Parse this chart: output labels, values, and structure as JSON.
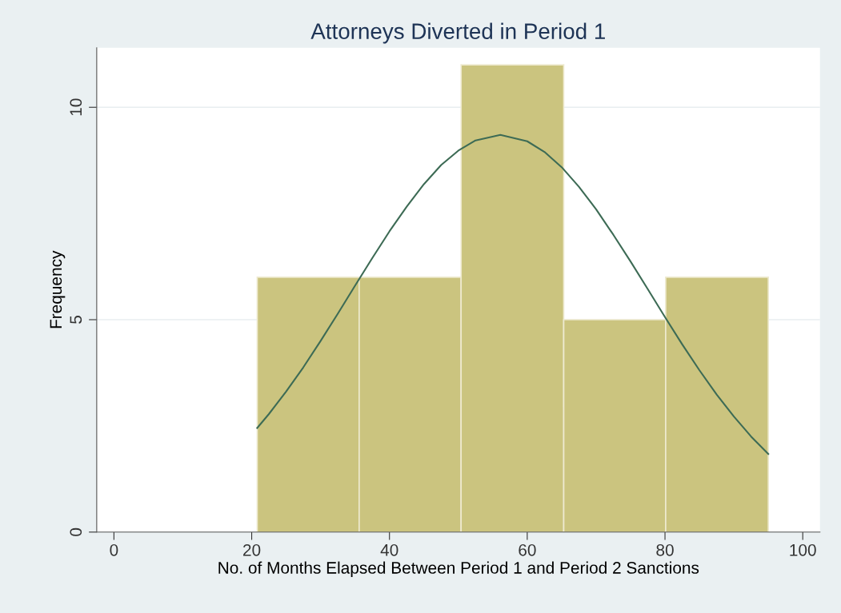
{
  "chart_data": {
    "type": "histogram",
    "title": "Attorneys Diverted in Period 1",
    "xlabel": "No. of Months Elapsed Between Period 1 and Period 2 Sanctions",
    "ylabel": "Frequency",
    "bins": [
      20.8,
      35.6,
      50.4,
      65.3,
      80.1,
      95.0
    ],
    "series": [
      {
        "color": "#cbc47f",
        "values": [
          6,
          6,
          11,
          5,
          6
        ]
      },
      {
        "type": "line",
        "color": "#3d6b55",
        "x": [
          20.8,
          22.5,
          25,
          27.5,
          30,
          32.5,
          35,
          37.5,
          40,
          42.5,
          45,
          47.5,
          50,
          52.5,
          56.1,
          60,
          62.5,
          65,
          67.5,
          70,
          72.5,
          75,
          77.5,
          80,
          82.5,
          85,
          87.5,
          90,
          92.5,
          95
        ],
        "values": [
          2.45,
          2.78,
          3.31,
          3.88,
          4.5,
          5.14,
          5.8,
          6.45,
          7.08,
          7.66,
          8.19,
          8.64,
          8.98,
          9.22,
          9.35,
          9.2,
          8.95,
          8.59,
          8.13,
          7.6,
          7.0,
          6.37,
          5.72,
          5.06,
          4.42,
          3.81,
          3.24,
          2.72,
          2.25,
          1.84
        ]
      }
    ],
    "xlim": [
      -2.5,
      102.5
    ],
    "xticks": [
      0,
      20,
      40,
      60,
      80,
      100
    ],
    "ylim": [
      0,
      11.4
    ],
    "yticks": [
      0,
      5,
      10
    ],
    "grid": "y",
    "legend": false,
    "marker": "none",
    "line_style": "solid"
  }
}
